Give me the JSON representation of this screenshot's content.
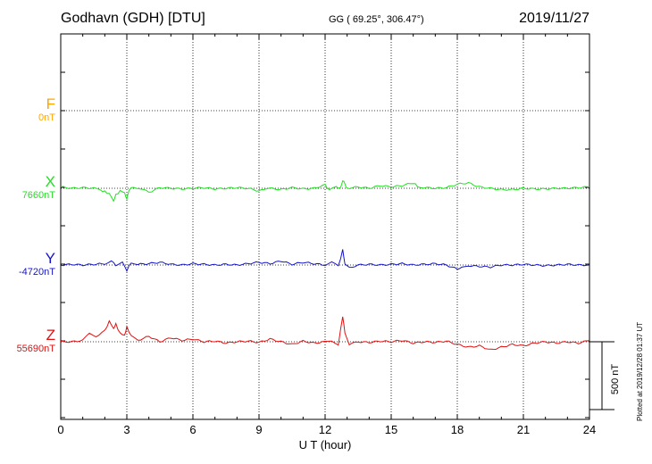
{
  "header": {
    "station": "Godhavn (GDH)  [DTU]",
    "coords": "GG ( 69.25°, 306.47°)",
    "date": "2019/11/27"
  },
  "footer": {
    "plotted": "Plotted at 2019/12/28 01:37 UT"
  },
  "chart_data": {
    "type": "line",
    "title": "Godhavn (GDH)  [DTU]",
    "xlabel": "U T (hour)",
    "ylabel": "",
    "xlim": [
      0,
      24
    ],
    "xticks": [
      0,
      3,
      6,
      9,
      12,
      15,
      18,
      21,
      24
    ],
    "grid": true,
    "scale_bar": {
      "label": "500 nT",
      "value_nT": 500
    },
    "series": [
      {
        "name": "F",
        "baseline_label": "0nT",
        "color": "#ffa500",
        "x": [],
        "values": []
      },
      {
        "name": "X",
        "baseline_label": "7660nT",
        "color": "#22e022",
        "x": [
          0,
          0.5,
          1,
          1.5,
          1.8,
          2,
          2.2,
          2.4,
          2.5,
          2.7,
          2.9,
          3,
          3.1,
          3.3,
          3.6,
          4,
          4.5,
          5,
          5.5,
          6,
          6.5,
          7,
          7.5,
          8,
          8.5,
          9,
          9.2,
          9.5,
          10,
          10.5,
          11,
          11.5,
          12,
          12.2,
          12.5,
          12.7,
          12.8,
          12.9,
          13,
          13.5,
          14,
          14.5,
          15,
          15.5,
          16,
          16.2,
          16.5,
          17,
          17.5,
          18,
          18.5,
          19,
          19.5,
          20,
          20.5,
          21,
          21.5,
          22,
          22.5,
          23,
          23.5,
          24
        ],
        "values": [
          10,
          0,
          5,
          0,
          -15,
          -25,
          -40,
          -90,
          -50,
          -20,
          -30,
          -85,
          -10,
          10,
          0,
          -30,
          5,
          0,
          -5,
          0,
          5,
          -5,
          0,
          5,
          0,
          -20,
          -5,
          0,
          -10,
          5,
          -5,
          0,
          25,
          -15,
          10,
          0,
          60,
          30,
          0,
          10,
          0,
          20,
          10,
          20,
          40,
          15,
          5,
          0,
          5,
          30,
          40,
          10,
          0,
          -10,
          -10,
          0,
          -5,
          -5,
          0,
          0,
          5,
          10
        ]
      },
      {
        "name": "Y",
        "baseline_label": "-4720nT",
        "color": "#1414cc",
        "x": [
          0,
          0.5,
          1,
          1.5,
          2,
          2.3,
          2.5,
          2.8,
          3,
          3.2,
          3.5,
          4,
          4.5,
          5,
          5.5,
          6,
          6.5,
          7,
          7.5,
          8,
          8.5,
          9,
          9.5,
          10,
          10.5,
          11,
          11.5,
          12,
          12.3,
          12.6,
          12.8,
          12.9,
          13.1,
          13.5,
          14,
          14.5,
          15,
          15.5,
          16,
          16.5,
          17,
          17.5,
          18,
          18.2,
          18.5,
          19,
          19.5,
          20,
          20.5,
          21,
          21.5,
          22,
          22.5,
          23,
          23.5,
          24
        ],
        "values": [
          0,
          5,
          0,
          5,
          10,
          30,
          0,
          20,
          -40,
          20,
          5,
          10,
          20,
          5,
          0,
          10,
          5,
          0,
          5,
          0,
          10,
          20,
          10,
          30,
          5,
          20,
          10,
          0,
          20,
          -10,
          110,
          10,
          -20,
          0,
          5,
          0,
          5,
          10,
          0,
          5,
          10,
          0,
          -30,
          -20,
          -5,
          -10,
          -15,
          0,
          0,
          5,
          0,
          -5,
          0,
          5,
          0,
          0
        ]
      },
      {
        "name": "Z",
        "baseline_label": "55690nT",
        "color": "#e01010",
        "x": [
          0,
          0.5,
          1,
          1.3,
          1.6,
          2,
          2.2,
          2.4,
          2.5,
          2.7,
          2.9,
          3,
          3.2,
          3.5,
          4,
          4.5,
          5,
          5.5,
          6,
          6.5,
          7,
          7.5,
          8,
          8.5,
          9,
          9.5,
          10,
          10.5,
          11,
          11.5,
          12,
          12.3,
          12.6,
          12.8,
          12.9,
          13.1,
          13.5,
          14,
          14.5,
          15,
          15.5,
          16,
          16.5,
          17,
          17.5,
          18,
          18.5,
          19,
          19.5,
          20,
          20.5,
          21,
          21.5,
          22,
          22.5,
          23,
          23.5,
          24
        ],
        "values": [
          0,
          0,
          10,
          60,
          40,
          80,
          150,
          100,
          130,
          60,
          50,
          110,
          40,
          10,
          40,
          0,
          30,
          10,
          20,
          0,
          5,
          -10,
          0,
          5,
          -5,
          20,
          0,
          -20,
          5,
          -10,
          0,
          10,
          -20,
          190,
          60,
          -20,
          0,
          -5,
          5,
          0,
          10,
          -10,
          0,
          -5,
          5,
          -20,
          -40,
          -30,
          -60,
          -40,
          -20,
          -30,
          -10,
          0,
          -10,
          0,
          -10,
          10
        ]
      }
    ]
  }
}
